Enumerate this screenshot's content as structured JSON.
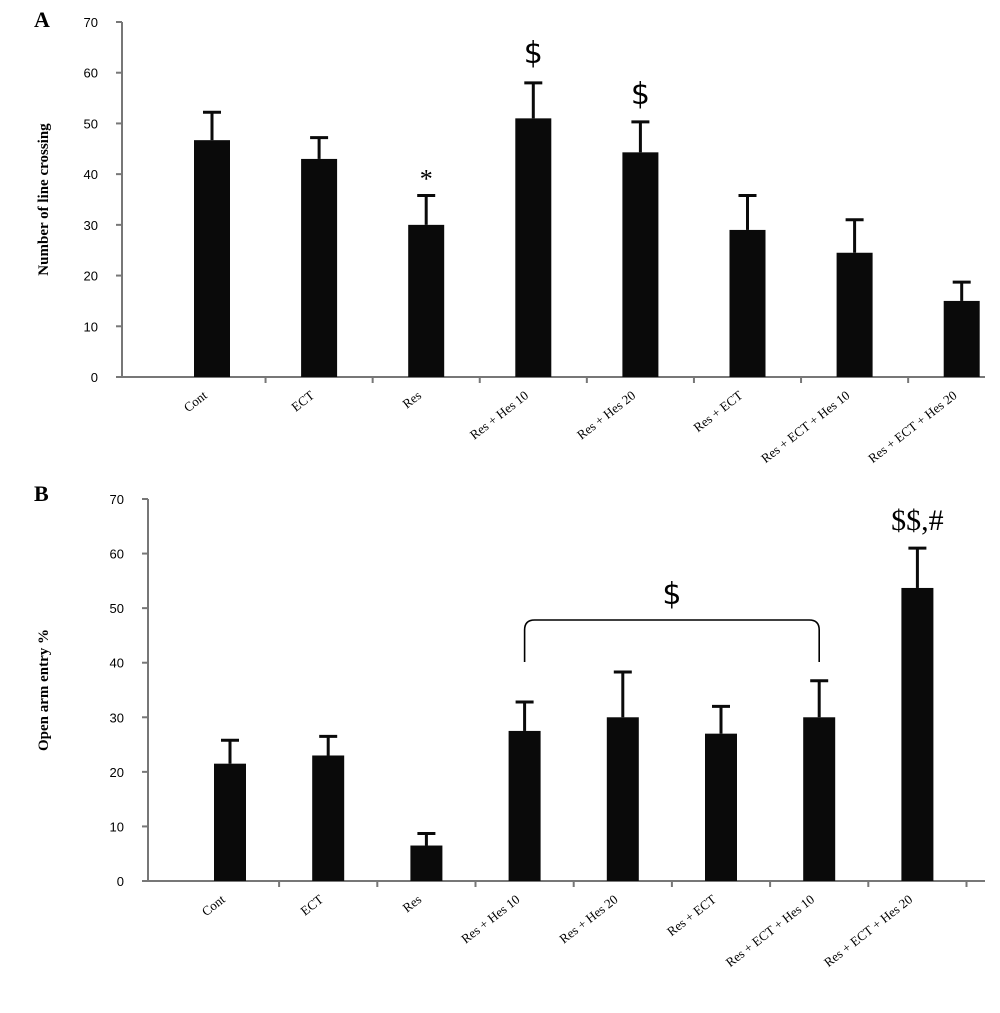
{
  "chart_data": [
    {
      "type": "bar",
      "panel_label": "A",
      "title": "",
      "xlabel": "",
      "ylabel": "Number of line crossing",
      "ylim": [
        0,
        70
      ],
      "yticks": [
        0,
        10,
        20,
        30,
        40,
        50,
        60,
        70
      ],
      "grid": false,
      "categories": [
        "Cont",
        "ECT",
        "Res",
        "Res + Hes 10",
        "Res + Hes 20",
        "Res + ECT",
        "Res + ECT + Hes 10",
        "Res + ECT + Hes 20"
      ],
      "values": [
        46.7,
        43.0,
        30.0,
        51.0,
        44.3,
        29.0,
        24.5,
        15.0
      ],
      "errors": [
        5.5,
        4.2,
        5.8,
        7.0,
        6.0,
        6.8,
        6.5,
        3.7
      ],
      "annotations": [
        {
          "category": "Res",
          "text": "*"
        },
        {
          "category": "Res + Hes 10",
          "text": "$"
        },
        {
          "category": "Res + Hes 20",
          "text": "$"
        }
      ]
    },
    {
      "type": "bar",
      "panel_label": "B",
      "title": "",
      "xlabel": "",
      "ylabel": "Open arm entry %",
      "ylim": [
        0,
        70
      ],
      "yticks": [
        0,
        10,
        20,
        30,
        40,
        50,
        60,
        70
      ],
      "grid": false,
      "categories": [
        "Cont",
        "ECT",
        "Res",
        "Res + Hes 10",
        "Res + Hes 20",
        "Res + ECT",
        "Res + ECT + Hes 10",
        "Res + ECT + Hes 20"
      ],
      "values": [
        21.5,
        23.0,
        6.5,
        27.5,
        30.0,
        27.0,
        30.0,
        53.7
      ],
      "errors": [
        4.3,
        3.5,
        2.2,
        5.3,
        8.3,
        5.0,
        6.7,
        7.3
      ],
      "annotations": [
        {
          "category": "Res + ECT + Hes 20",
          "text": "$$,#"
        }
      ],
      "bracket": {
        "from": "Res + Hes 10",
        "to": "Res + ECT + Hes 10",
        "text": "$"
      }
    }
  ]
}
